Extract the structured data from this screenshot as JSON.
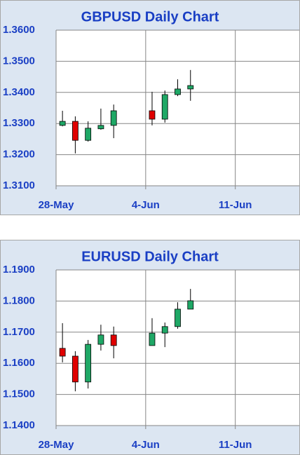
{
  "chart_data": [
    {
      "type": "candlestick",
      "title": "GBPUSD Daily Chart",
      "categories": [
        "28-May",
        null,
        null,
        null,
        null,
        null,
        null,
        "4-Jun",
        null,
        null,
        null,
        null,
        null,
        null,
        "11-Jun",
        null,
        null,
        null,
        null
      ],
      "open": [
        1.3294,
        1.3307,
        1.3246,
        1.3283,
        1.3294,
        null,
        null,
        1.3341,
        1.3314,
        1.3393,
        1.3411,
        null,
        null,
        null,
        null,
        null,
        null,
        null,
        null
      ],
      "high": [
        1.3341,
        1.3323,
        1.3307,
        1.3348,
        1.3361,
        null,
        null,
        1.3402,
        1.3406,
        1.3442,
        1.3472,
        null,
        null,
        null,
        null,
        null,
        null,
        null,
        null
      ],
      "low": [
        1.3291,
        1.3204,
        1.3242,
        1.328,
        1.3253,
        null,
        null,
        1.3294,
        1.3303,
        1.3388,
        1.3373,
        null,
        null,
        null,
        null,
        null,
        null,
        null,
        null
      ],
      "close": [
        1.3307,
        1.3246,
        1.3285,
        1.3294,
        1.3341,
        null,
        null,
        1.3314,
        1.3393,
        1.3411,
        1.3422,
        null,
        null,
        null,
        null,
        null,
        null,
        null,
        null
      ],
      "up_color": "#1fa866",
      "down_color": "#e00000",
      "ylim": [
        1.31,
        1.36
      ],
      "yticks": [
        {
          "value": 1.31,
          "label": "1.3100"
        },
        {
          "value": 1.32,
          "label": "1.3200"
        },
        {
          "value": 1.33,
          "label": "1.3300"
        },
        {
          "value": 1.34,
          "label": "1.3400"
        },
        {
          "value": 1.35,
          "label": "1.3500"
        },
        {
          "value": 1.36,
          "label": "1.3600"
        }
      ],
      "grid": true
    },
    {
      "type": "candlestick",
      "title": "EURUSD Daily Chart",
      "categories": [
        "28-May",
        null,
        null,
        null,
        null,
        null,
        null,
        "4-Jun",
        null,
        null,
        null,
        null,
        null,
        null,
        "11-Jun",
        null,
        null,
        null,
        null
      ],
      "open": [
        1.1648,
        1.1623,
        1.154,
        1.1661,
        1.1691,
        null,
        null,
        1.1657,
        1.1697,
        1.1718,
        1.1774,
        null,
        null,
        null,
        null,
        null,
        null,
        null,
        null
      ],
      "high": [
        1.1729,
        1.1639,
        1.1675,
        1.1724,
        1.1718,
        null,
        null,
        1.1745,
        1.1731,
        1.1796,
        1.1839,
        null,
        null,
        null,
        null,
        null,
        null,
        null,
        null
      ],
      "low": [
        1.1603,
        1.151,
        1.1519,
        1.1641,
        1.1616,
        null,
        null,
        1.1657,
        1.1652,
        1.1711,
        1.1774,
        null,
        null,
        null,
        null,
        null,
        null,
        null,
        null
      ],
      "close": [
        1.1623,
        1.154,
        1.1661,
        1.1691,
        1.1657,
        null,
        null,
        1.1697,
        1.1718,
        1.1774,
        1.1801,
        null,
        null,
        null,
        null,
        null,
        null,
        null,
        null
      ],
      "up_color": "#1fa866",
      "down_color": "#e00000",
      "ylim": [
        1.14,
        1.19
      ],
      "yticks": [
        {
          "value": 1.14,
          "label": "1.1400"
        },
        {
          "value": 1.15,
          "label": "1.1500"
        },
        {
          "value": 1.16,
          "label": "1.1600"
        },
        {
          "value": 1.17,
          "label": "1.1700"
        },
        {
          "value": 1.18,
          "label": "1.1800"
        },
        {
          "value": 1.19,
          "label": "1.1900"
        }
      ],
      "grid": true
    }
  ]
}
